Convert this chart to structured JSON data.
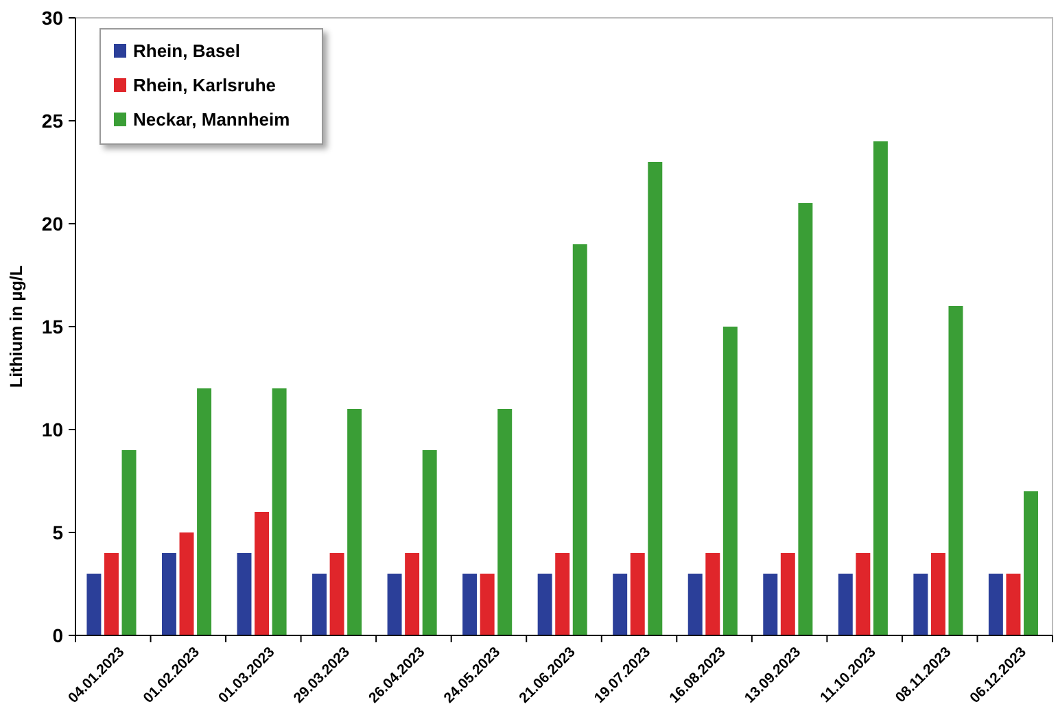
{
  "chart_data": {
    "type": "bar",
    "ylabel": "Lithium in µg/L",
    "categories": [
      "04.01.2023",
      "01.02.2023",
      "01.03.2023",
      "29.03.2023",
      "26.04.2023",
      "24.05.2023",
      "21.06.2023",
      "19.07.2023",
      "16.08.2023",
      "13.09.2023",
      "11.10.2023",
      "08.11.2023",
      "06.12.2023"
    ],
    "series": [
      {
        "name": "Rhein, Basel",
        "color": "#2b3f99",
        "values": [
          3,
          4,
          4,
          3,
          3,
          3,
          3,
          3,
          3,
          3,
          3,
          3,
          3
        ]
      },
      {
        "name": "Rhein, Karlsruhe",
        "color": "#e0262b",
        "values": [
          4,
          5,
          6,
          4,
          4,
          3,
          4,
          4,
          4,
          4,
          4,
          4,
          3
        ]
      },
      {
        "name": "Neckar, Mannheim",
        "color": "#3a9e36",
        "values": [
          9,
          12,
          12,
          11,
          9,
          11,
          19,
          23,
          15,
          21,
          24,
          16,
          7
        ]
      }
    ],
    "ylim": [
      0,
      30
    ],
    "yticks": [
      0,
      5,
      10,
      15,
      20,
      25,
      30
    ],
    "grid": false,
    "legend": "top left"
  }
}
